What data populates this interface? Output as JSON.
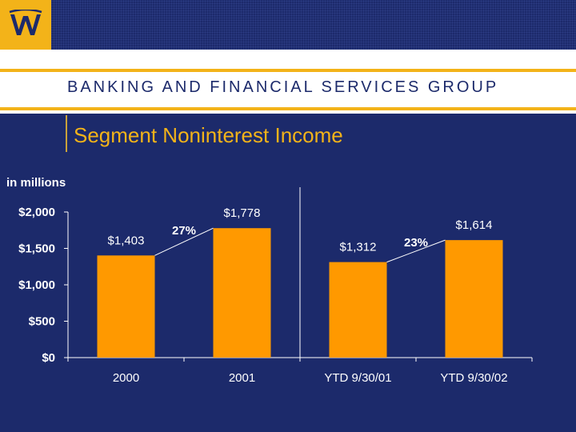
{
  "header": {
    "group_name": "BANKING AND FINANCIAL SERVICES GROUP",
    "logo_icon": "wachovia-w-logo-icon"
  },
  "slide": {
    "title": "Segment Noninterest Income",
    "units": "in millions"
  },
  "colors": {
    "background": "#1c2a6b",
    "accent": "#f3b319",
    "bar": "#ff9900"
  },
  "chart_data": {
    "type": "bar",
    "categories": [
      "2000",
      "2001",
      "YTD 9/30/01",
      "YTD 9/30/02"
    ],
    "values": [
      1403,
      1778,
      1312,
      1614
    ],
    "data_labels": [
      "$1,403",
      "$1,778",
      "$1,312",
      "$1,614"
    ],
    "ylim": [
      0,
      2000
    ],
    "yticks": [
      0,
      500,
      1000,
      1500,
      2000
    ],
    "ytick_labels": [
      "$0",
      "$500",
      "$1,000",
      "$1,500",
      "$2,000"
    ],
    "growth_annotations": [
      {
        "from": 0,
        "to": 1,
        "label": "27%"
      },
      {
        "from": 2,
        "to": 3,
        "label": "23%"
      }
    ],
    "divider_between": [
      1,
      2
    ],
    "grid": false,
    "legend": "none"
  }
}
